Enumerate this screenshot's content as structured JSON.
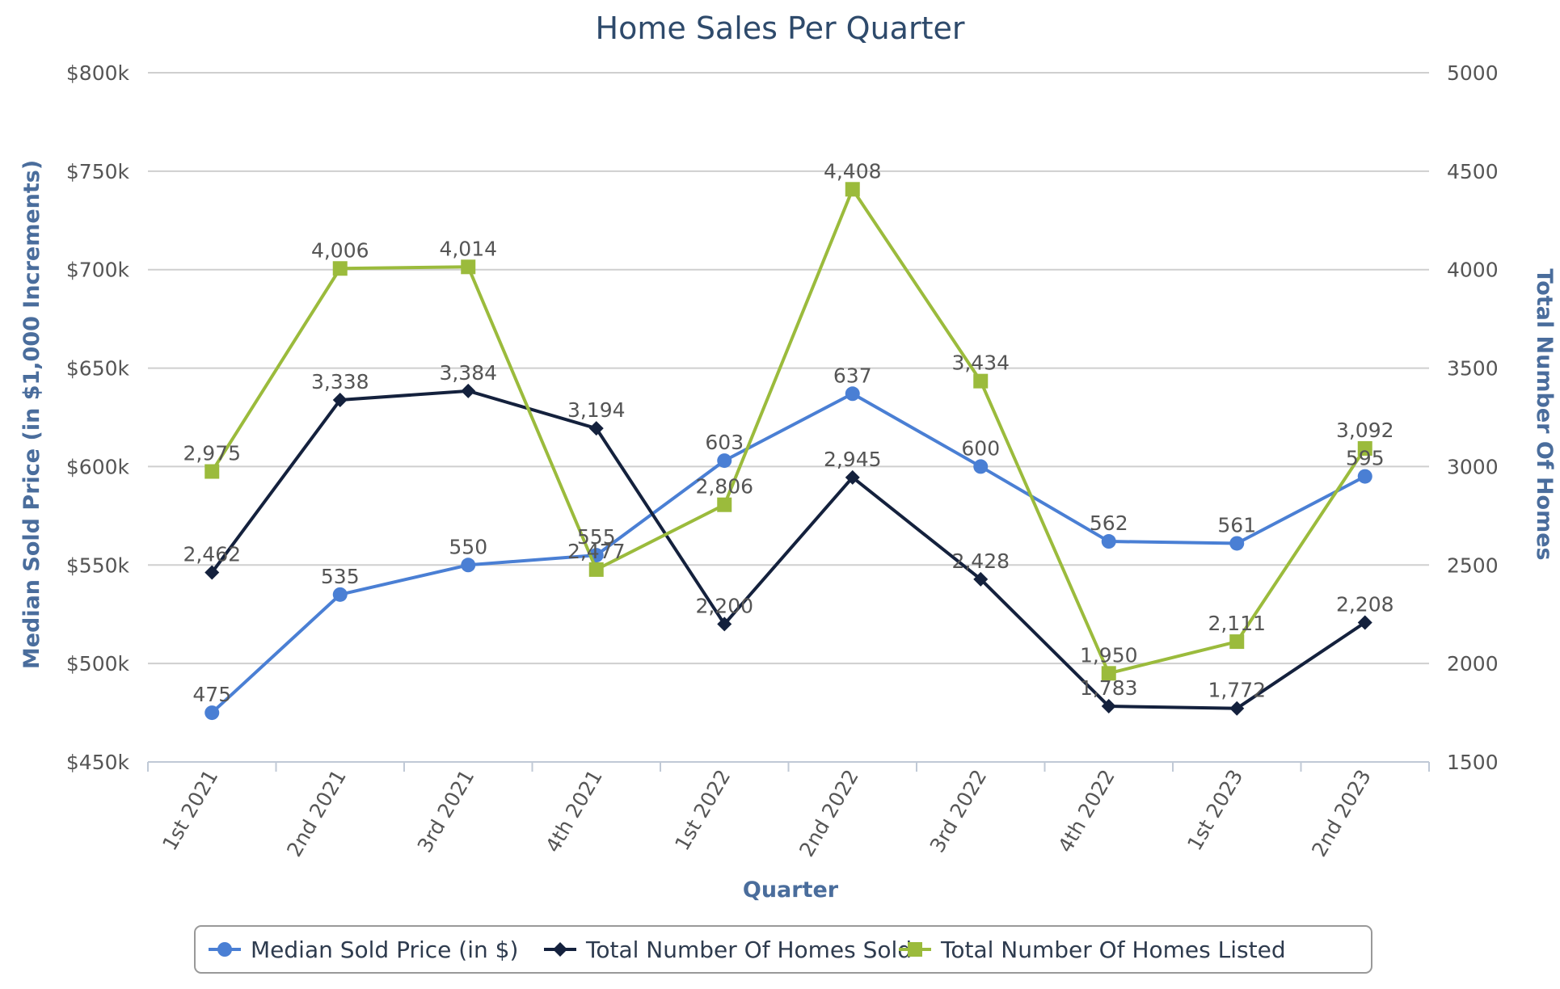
{
  "chart_data": {
    "type": "line",
    "title": "Home Sales Per Quarter",
    "xlabel": "Quarter",
    "ylabel_left": "Median Sold Price (in $1,000 Increments)",
    "ylabel_right": "Total Number Of Homes",
    "categories": [
      "1st 2021",
      "2nd 2021",
      "3rd 2021",
      "4th 2021",
      "1st 2022",
      "2nd 2022",
      "3rd 2022",
      "4th 2022",
      "1st 2023",
      "2nd 2023"
    ],
    "y_left": {
      "min": 450,
      "max": 800,
      "step": 50,
      "tick_labels": [
        "$450k",
        "$500k",
        "$550k",
        "$600k",
        "$650k",
        "$700k",
        "$750k",
        "$800k"
      ]
    },
    "y_right": {
      "min": 1500,
      "max": 5000,
      "step": 500,
      "tick_labels": [
        "1500",
        "2000",
        "2500",
        "3000",
        "3500",
        "4000",
        "4500",
        "5000"
      ]
    },
    "grid": true,
    "legend_position": "bottom-center",
    "series": [
      {
        "name": "Median Sold Price (in $)",
        "axis": "left",
        "color": "#4a7fd4",
        "marker": "circle",
        "values": [
          475,
          535,
          550,
          555,
          603,
          637,
          600,
          562,
          561,
          595
        ],
        "labels": [
          "475",
          "535",
          "550",
          "555",
          "603",
          "637",
          "600",
          "562",
          "561",
          "595"
        ]
      },
      {
        "name": "Total Number Of Homes Sold",
        "axis": "right",
        "color": "#14213d",
        "marker": "diamond",
        "values": [
          2462,
          3338,
          3384,
          3194,
          2200,
          2945,
          2428,
          1783,
          1772,
          2208
        ],
        "labels": [
          "2,462",
          "3,338",
          "3,384",
          "3,194",
          "2,200",
          "2,945",
          "2,428",
          "1,783",
          "1,772",
          "2,208"
        ]
      },
      {
        "name": "Total Number Of Homes Listed",
        "axis": "right",
        "color": "#9bbb3c",
        "marker": "square",
        "values": [
          2975,
          4006,
          4014,
          2477,
          2806,
          4408,
          3434,
          1950,
          2111,
          3092
        ],
        "labels": [
          "2,975",
          "4,006",
          "4,014",
          "2,477",
          "2,806",
          "4,408",
          "3,434",
          "1,950",
          "2,111",
          "3,092"
        ]
      }
    ]
  }
}
